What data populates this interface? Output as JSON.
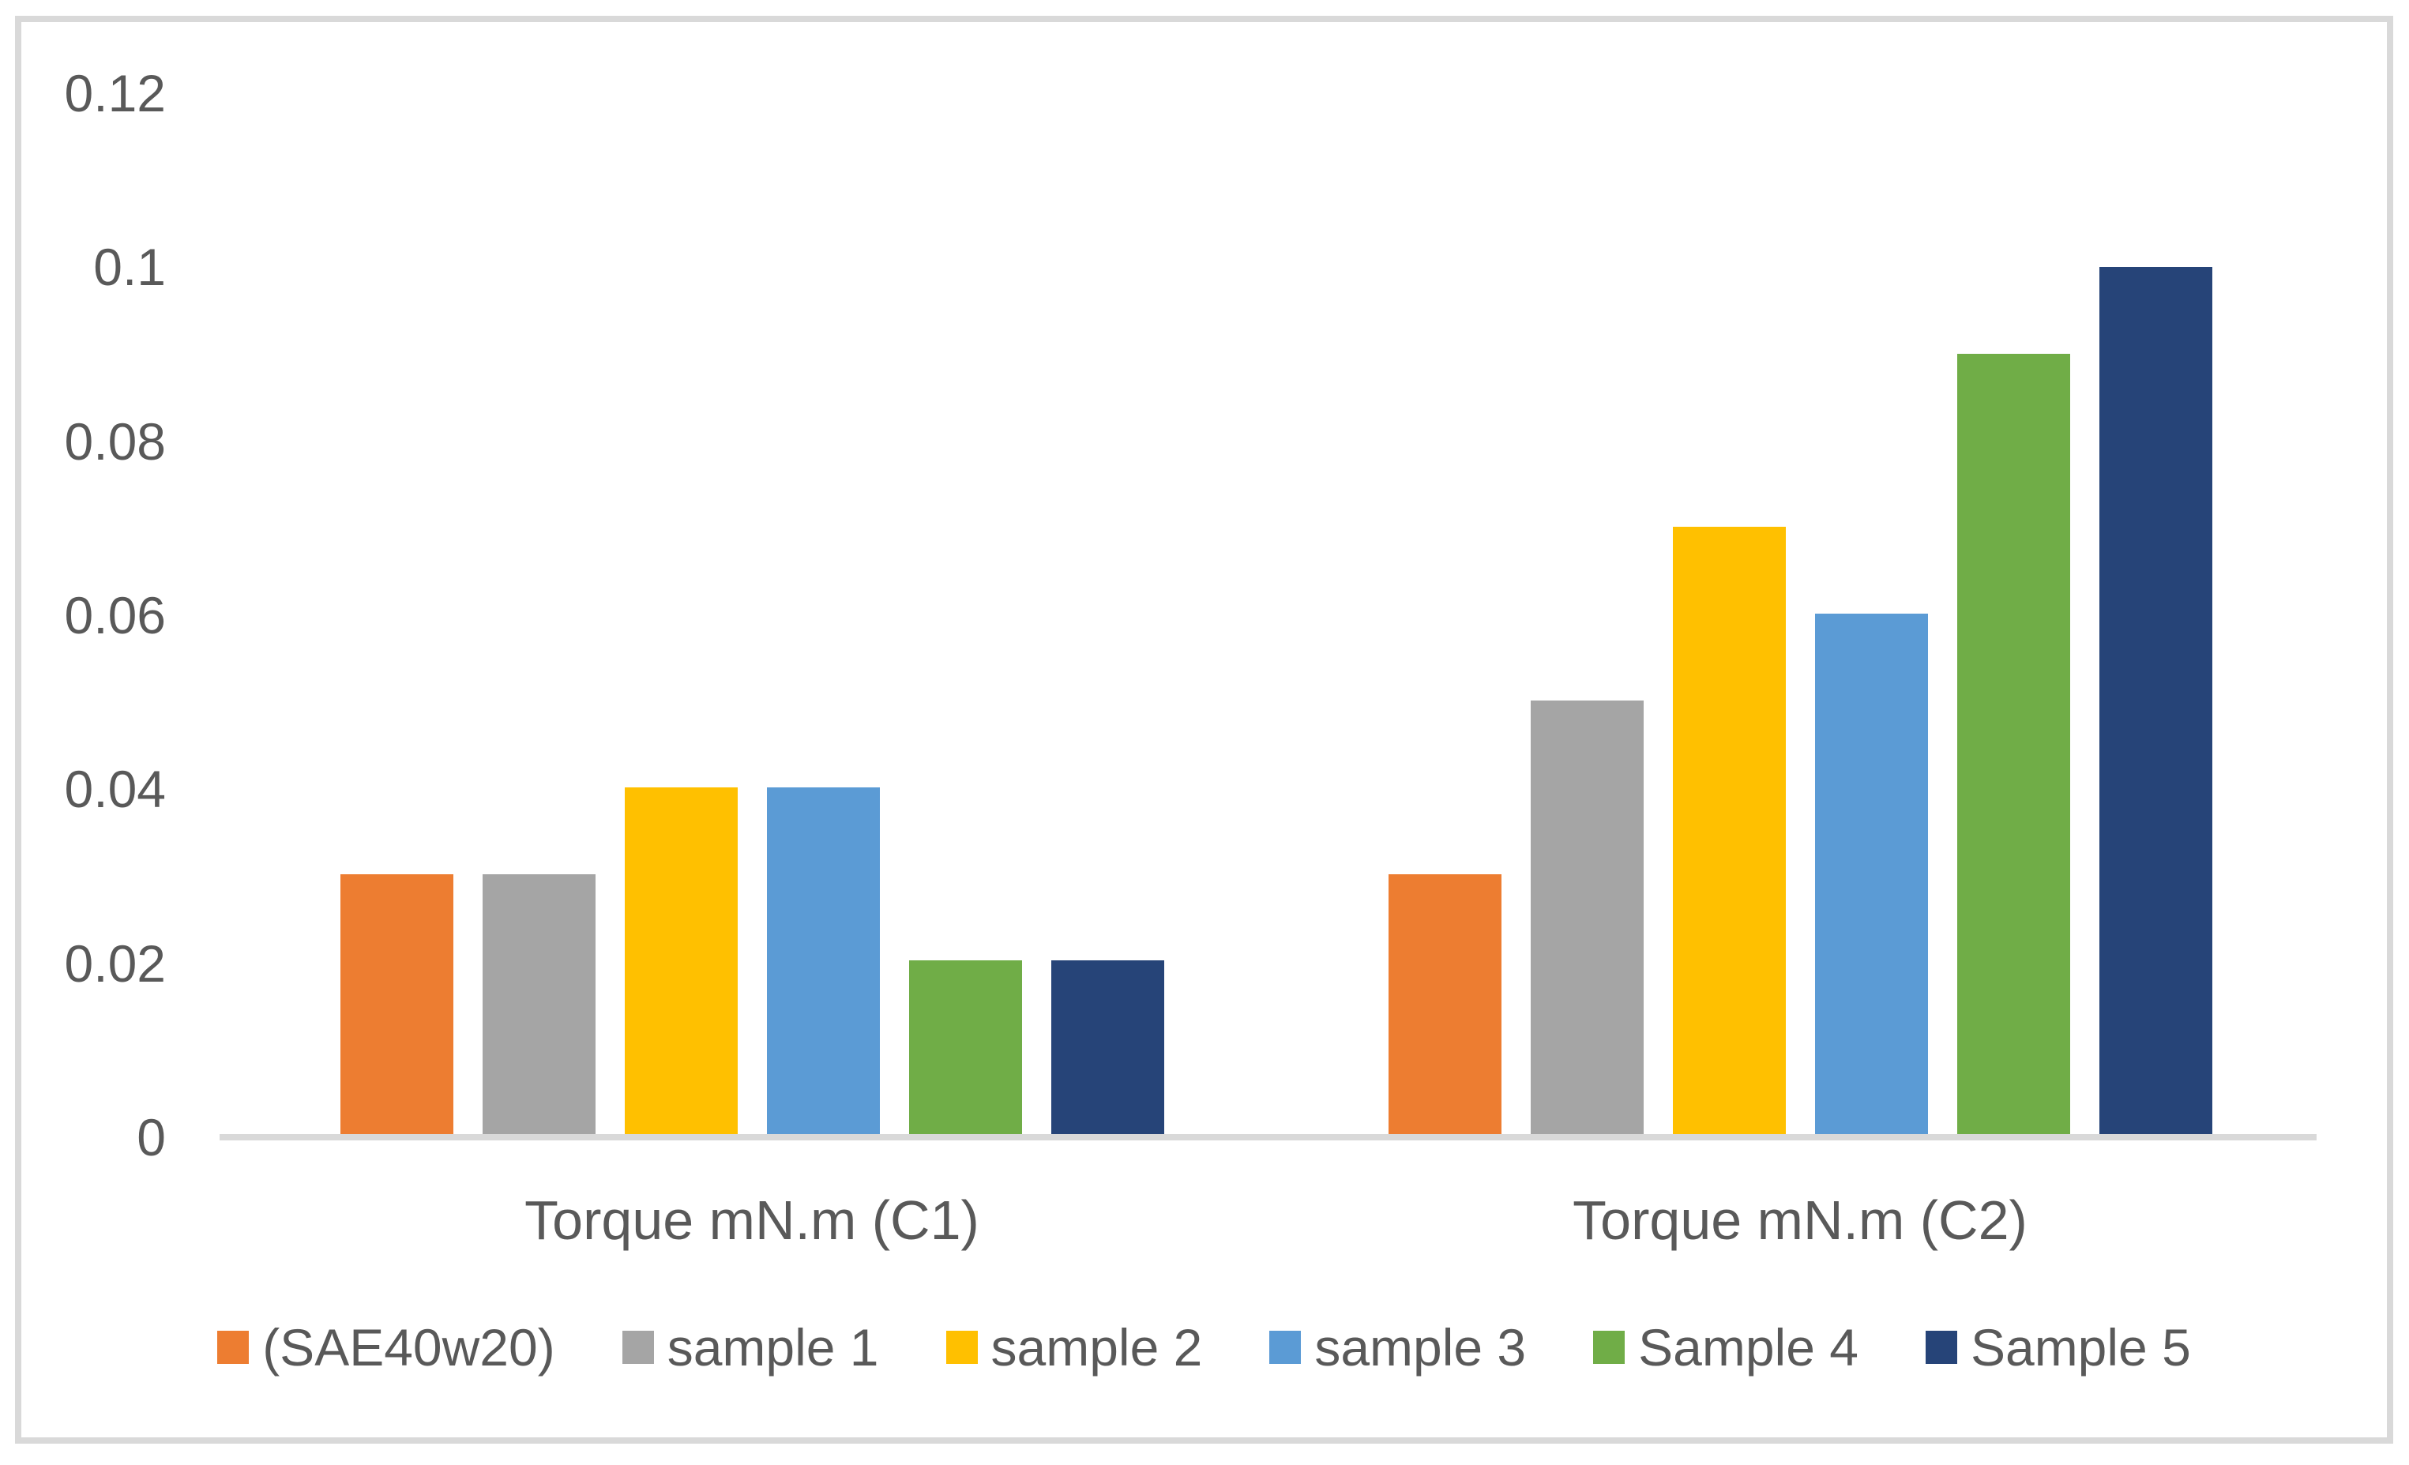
{
  "chart_data": {
    "type": "bar",
    "title": "",
    "categories": [
      "Torque mN.m (C1)",
      "Torque mN.m (C2)"
    ],
    "series": [
      {
        "name": "(SAE40w20)",
        "color": "#ED7D31",
        "values": [
          0.03,
          0.03
        ]
      },
      {
        "name": "sample 1",
        "color": "#A5A5A5",
        "values": [
          0.03,
          0.05
        ]
      },
      {
        "name": "sample 2",
        "color": "#FFC000",
        "values": [
          0.04,
          0.07
        ]
      },
      {
        "name": "sample 3",
        "color": "#5B9BD5",
        "values": [
          0.04,
          0.06
        ]
      },
      {
        "name": "Sample 4",
        "color": "#70AD47",
        "values": [
          0.02,
          0.09
        ]
      },
      {
        "name": "Sample 5",
        "color": "#264478",
        "values": [
          0.02,
          0.1
        ]
      }
    ],
    "ylim": [
      0,
      0.12
    ],
    "yticks": [
      {
        "label": "0",
        "value": 0
      },
      {
        "label": "0.02",
        "value": 0.02
      },
      {
        "label": "0.04",
        "value": 0.04
      },
      {
        "label": "0.06",
        "value": 0.06
      },
      {
        "label": "0.08",
        "value": 0.08
      },
      {
        "label": "0.1",
        "value": 0.1
      },
      {
        "label": "0.12",
        "value": 0.12
      }
    ],
    "xlabel": "",
    "ylabel": "",
    "grid": false,
    "legend_position": "bottom",
    "colors": {
      "text": "#595959",
      "axis_line": "#D9D9D9",
      "frame_border": "#D9D9D9",
      "background": "#FFFFFF"
    }
  }
}
